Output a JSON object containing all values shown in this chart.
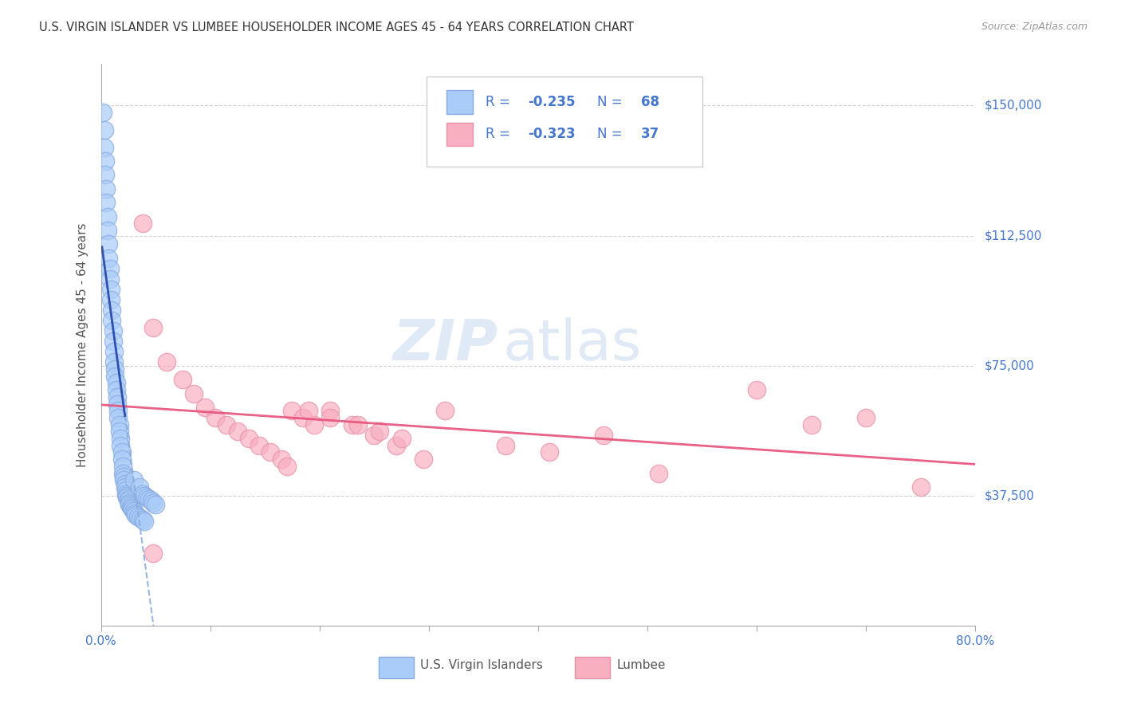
{
  "title": "U.S. VIRGIN ISLANDER VS LUMBEE HOUSEHOLDER INCOME AGES 45 - 64 YEARS CORRELATION CHART",
  "source": "Source: ZipAtlas.com",
  "ylabel": "Householder Income Ages 45 - 64 years",
  "yticks": [
    0,
    37500,
    75000,
    112500,
    150000
  ],
  "ytick_labels": [
    "",
    "$37,500",
    "$75,000",
    "$112,500",
    "$150,000"
  ],
  "xlim": [
    0.0,
    0.8
  ],
  "ylim": [
    0,
    162000
  ],
  "blue_R": -0.235,
  "blue_N": 68,
  "pink_R": -0.323,
  "pink_N": 37,
  "blue_color": "#aaccf8",
  "blue_edge": "#88aae0",
  "pink_color": "#f8b0c0",
  "pink_edge": "#e890a8",
  "blue_line_color": "#2244aa",
  "blue_dash_color": "#88aadd",
  "pink_line_color": "#e8507a",
  "legend_text_color": "#4477cc",
  "grid_color": "#cccccc",
  "axis_color": "#aaaaaa",
  "right_label_color": "#4477cc",
  "watermark_zip": "ZIP",
  "watermark_atlas": "atlas",
  "watermark_color_zip": "#c8d8f0",
  "watermark_color_atlas": "#c8d8f0",
  "blue_x": [
    0.002,
    0.003,
    0.003,
    0.004,
    0.004,
    0.005,
    0.005,
    0.006,
    0.006,
    0.007,
    0.007,
    0.008,
    0.008,
    0.009,
    0.009,
    0.01,
    0.01,
    0.011,
    0.011,
    0.012,
    0.012,
    0.013,
    0.013,
    0.014,
    0.014,
    0.015,
    0.015,
    0.016,
    0.016,
    0.017,
    0.017,
    0.018,
    0.018,
    0.019,
    0.019,
    0.02,
    0.02,
    0.021,
    0.021,
    0.022,
    0.022,
    0.023,
    0.023,
    0.024,
    0.024,
    0.025,
    0.025,
    0.026,
    0.026,
    0.027,
    0.028,
    0.029,
    0.03,
    0.031,
    0.032,
    0.034,
    0.036,
    0.038,
    0.04,
    0.03,
    0.035,
    0.038,
    0.04,
    0.042,
    0.044,
    0.046,
    0.048,
    0.05
  ],
  "blue_y": [
    148000,
    143000,
    138000,
    134000,
    130000,
    126000,
    122000,
    118000,
    114000,
    110000,
    106000,
    103000,
    100000,
    97000,
    94000,
    91000,
    88000,
    85000,
    82000,
    79000,
    76000,
    74000,
    72000,
    70000,
    68000,
    66000,
    64000,
    62000,
    60000,
    58000,
    56000,
    54000,
    52000,
    50000,
    48000,
    46000,
    44000,
    43000,
    42000,
    41000,
    40000,
    39000,
    38000,
    37500,
    37000,
    36500,
    36000,
    35500,
    35000,
    34500,
    34000,
    33500,
    33000,
    32500,
    32000,
    31500,
    31000,
    30500,
    30000,
    42000,
    40000,
    38000,
    37500,
    37000,
    36500,
    36000,
    35500,
    35000
  ],
  "pink_x": [
    0.038,
    0.048,
    0.06,
    0.075,
    0.085,
    0.095,
    0.105,
    0.115,
    0.125,
    0.135,
    0.145,
    0.155,
    0.165,
    0.175,
    0.185,
    0.195,
    0.21,
    0.23,
    0.25,
    0.27,
    0.17,
    0.19,
    0.21,
    0.235,
    0.255,
    0.275,
    0.295,
    0.315,
    0.37,
    0.41,
    0.46,
    0.51,
    0.6,
    0.65,
    0.7,
    0.75,
    0.048
  ],
  "pink_y": [
    116000,
    86000,
    76000,
    71000,
    67000,
    63000,
    60000,
    58000,
    56000,
    54000,
    52000,
    50000,
    48000,
    62000,
    60000,
    58000,
    62000,
    58000,
    55000,
    52000,
    46000,
    62000,
    60000,
    58000,
    56000,
    54000,
    48000,
    62000,
    52000,
    50000,
    55000,
    44000,
    68000,
    58000,
    60000,
    40000,
    21000
  ]
}
